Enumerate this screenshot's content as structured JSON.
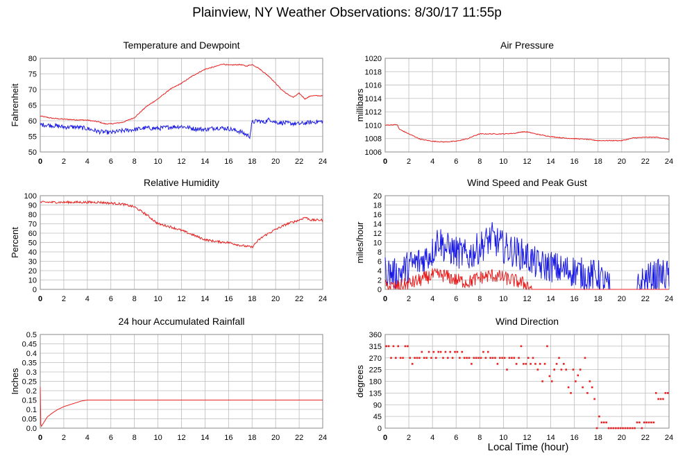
{
  "page": {
    "title": "Plainview, NY Weather Observations: 8/30/17 11:55p",
    "xlabel": "Local Time (hour)"
  },
  "colors": {
    "red": "#e82020",
    "blue": "#1a1ae6",
    "grid": "#bbbbbb",
    "frame": "#888888"
  },
  "chart_data": [
    {
      "id": "temp",
      "type": "line",
      "title": "Temperature and Dewpoint",
      "ylabel": "Fahrenheit",
      "xlim": [
        0,
        24
      ],
      "ylim": [
        50,
        80
      ],
      "xticks": [
        0,
        2,
        4,
        6,
        8,
        10,
        12,
        14,
        16,
        18,
        20,
        22,
        24
      ],
      "yticks": [
        50,
        55,
        60,
        65,
        70,
        75,
        80
      ],
      "grid": true,
      "series": [
        {
          "color": "red",
          "jitter": 0.15,
          "x": [
            0,
            1,
            2,
            3,
            4,
            5,
            5.5,
            6,
            7,
            8,
            9,
            10,
            11,
            12,
            13,
            14,
            15,
            15.5,
            16,
            17,
            17.5,
            18,
            18.5,
            19,
            19.5,
            20,
            20.5,
            21,
            21.5,
            22,
            22.5,
            23,
            24
          ],
          "y": [
            61.5,
            60.8,
            60.5,
            60.3,
            60.2,
            59.6,
            59,
            59,
            59.5,
            61,
            64.5,
            67,
            70,
            72,
            74.5,
            76.5,
            77.5,
            78.2,
            77.8,
            78,
            77.5,
            78,
            77,
            75.5,
            74,
            72,
            70,
            68.5,
            67.5,
            68.8,
            67,
            68,
            68
          ]
        },
        {
          "color": "blue",
          "jitter": 0.7,
          "x": [
            0,
            1,
            2,
            3,
            4,
            5,
            6,
            7,
            8,
            9,
            10,
            11,
            12,
            13,
            14,
            15,
            16,
            17,
            17.8,
            18,
            18.5,
            19,
            19.5,
            20,
            21,
            22,
            23,
            24
          ],
          "y": [
            58.8,
            58.5,
            58,
            58,
            57.5,
            56.5,
            56.2,
            56.8,
            57.2,
            57.7,
            57.5,
            58,
            58.2,
            57.5,
            57.2,
            57.8,
            57.5,
            56.5,
            55,
            59.5,
            60,
            59.5,
            60.5,
            59.5,
            59.2,
            59,
            59.5,
            59.8
          ]
        }
      ]
    },
    {
      "id": "pressure",
      "type": "line",
      "title": "Air Pressure",
      "ylabel": "millibars",
      "xlim": [
        0,
        24
      ],
      "ylim": [
        1006,
        1020
      ],
      "xticks": [
        0,
        2,
        4,
        6,
        8,
        10,
        12,
        14,
        16,
        18,
        20,
        22,
        24
      ],
      "yticks": [
        1006,
        1008,
        1010,
        1012,
        1014,
        1016,
        1018,
        1020
      ],
      "grid": true,
      "series": [
        {
          "color": "red",
          "jitter": 0.06,
          "x": [
            0,
            1,
            1.2,
            2,
            2.5,
            3,
            4,
            5,
            6,
            7,
            7.5,
            8,
            9,
            10,
            11,
            11.5,
            12,
            13,
            14,
            15,
            16,
            17,
            18,
            19,
            20,
            20.5,
            21,
            22,
            23,
            24
          ],
          "y": [
            1010,
            1010.1,
            1009.4,
            1008.7,
            1008.3,
            1007.9,
            1007.6,
            1007.5,
            1007.6,
            1008,
            1008.4,
            1008.7,
            1008.7,
            1008.7,
            1008.8,
            1009,
            1009,
            1008.6,
            1008.3,
            1008.1,
            1008,
            1007.9,
            1007.7,
            1007.7,
            1007.7,
            1007.9,
            1008.1,
            1008.2,
            1008.2,
            1007.9
          ]
        }
      ]
    },
    {
      "id": "humidity",
      "type": "line",
      "title": "Relative Humidity",
      "ylabel": "Percent",
      "xlim": [
        0,
        24
      ],
      "ylim": [
        0,
        100
      ],
      "xticks": [
        0,
        2,
        4,
        6,
        8,
        10,
        12,
        14,
        16,
        18,
        20,
        22,
        24
      ],
      "yticks": [
        0,
        10,
        20,
        30,
        40,
        50,
        60,
        70,
        80,
        90,
        100
      ],
      "grid": true,
      "series": [
        {
          "color": "red",
          "jitter": 1.2,
          "x": [
            0,
            1,
            2,
            3,
            4,
            5,
            6,
            7,
            8,
            9,
            10,
            11,
            12,
            13,
            14,
            15,
            16,
            17,
            18,
            18.5,
            19,
            20,
            21,
            22,
            22.5,
            23,
            24
          ],
          "y": [
            93,
            93,
            93,
            93,
            93,
            93,
            92,
            91,
            88,
            80,
            70,
            67,
            63,
            58,
            53,
            51,
            50,
            47,
            45,
            52,
            57,
            64,
            70,
            74,
            77,
            74,
            74
          ]
        }
      ]
    },
    {
      "id": "wind",
      "type": "line",
      "title": "Wind Speed and Peak Gust",
      "ylabel": "miles/hour",
      "xlim": [
        0,
        24
      ],
      "ylim": [
        0,
        20
      ],
      "xticks": [
        0,
        2,
        4,
        6,
        8,
        10,
        12,
        14,
        16,
        18,
        20,
        22,
        24
      ],
      "yticks": [
        0,
        2,
        4,
        6,
        8,
        10,
        12,
        14,
        16,
        18,
        20
      ],
      "grid": true,
      "series": [
        {
          "color": "blue",
          "jitter": 3.5,
          "zeroAfter": [
            19,
            21.3
          ],
          "x": [
            0,
            1,
            2,
            3,
            4,
            4.5,
            5,
            6,
            7,
            8,
            8.5,
            9,
            10,
            11,
            12,
            13,
            14,
            15,
            16,
            17,
            18,
            19,
            20,
            21,
            22,
            23,
            24
          ],
          "y": [
            4,
            3,
            5,
            6,
            8,
            11,
            9,
            8,
            7,
            9,
            10,
            11,
            9,
            8,
            7,
            5,
            5,
            4,
            4,
            3,
            3,
            0,
            0,
            0,
            2,
            3,
            3
          ]
        },
        {
          "color": "red",
          "jitter": 1.5,
          "zeroAfter": [
            12.5,
            100
          ],
          "x": [
            0,
            1,
            2,
            3,
            4,
            5,
            6,
            7,
            8,
            9,
            10,
            11,
            12,
            12.5,
            24
          ],
          "y": [
            0.6,
            0.5,
            1.2,
            2,
            3,
            3,
            2,
            1.5,
            2.5,
            3,
            2.5,
            1.8,
            1,
            0,
            0
          ]
        }
      ]
    },
    {
      "id": "rain",
      "type": "line",
      "title": "24 hour Accumulated Rainfall",
      "ylabel": "Inches",
      "xlim": [
        0,
        24
      ],
      "ylim": [
        0,
        0.5
      ],
      "xticks": [
        0,
        2,
        4,
        6,
        8,
        10,
        12,
        14,
        16,
        18,
        20,
        22,
        24
      ],
      "yticks": [
        0,
        0.05,
        0.1,
        0.15,
        0.2,
        0.25,
        0.3,
        0.35,
        0.4,
        0.45,
        0.5
      ],
      "grid": true,
      "series": [
        {
          "color": "red",
          "jitter": 0,
          "x": [
            0,
            0.05,
            0.1,
            0.3,
            0.6,
            1,
            1.5,
            2,
            2.5,
            3,
            3.5,
            4,
            24
          ],
          "y": [
            0.22,
            0.02,
            0.01,
            0.03,
            0.06,
            0.08,
            0.1,
            0.115,
            0.125,
            0.135,
            0.145,
            0.15,
            0.15
          ]
        }
      ]
    },
    {
      "id": "direction",
      "type": "scatter",
      "title": "Wind Direction",
      "ylabel": "degrees",
      "xlim": [
        0,
        24
      ],
      "ylim": [
        0,
        360
      ],
      "xticks": [
        0,
        2,
        4,
        6,
        8,
        10,
        12,
        14,
        16,
        18,
        20,
        22,
        24
      ],
      "yticks": [
        0,
        45,
        90,
        135,
        180,
        225,
        270,
        315,
        360
      ],
      "grid": true,
      "series": [
        {
          "color": "red",
          "points": [
            [
              0.1,
              315
            ],
            [
              0.3,
              315
            ],
            [
              0.5,
              270
            ],
            [
              0.7,
              315
            ],
            [
              0.9,
              270
            ],
            [
              1.1,
              315
            ],
            [
              1.3,
              270
            ],
            [
              1.5,
              270
            ],
            [
              1.7,
              315
            ],
            [
              1.9,
              315
            ],
            [
              2.1,
              270
            ],
            [
              2.3,
              247
            ],
            [
              2.5,
              270
            ],
            [
              2.7,
              270
            ],
            [
              2.9,
              270
            ],
            [
              3.1,
              293
            ],
            [
              3.3,
              270
            ],
            [
              3.5,
              270
            ],
            [
              3.7,
              293
            ],
            [
              3.9,
              270
            ],
            [
              4.1,
              293
            ],
            [
              4.3,
              270
            ],
            [
              4.5,
              293
            ],
            [
              4.7,
              293
            ],
            [
              4.9,
              270
            ],
            [
              5.1,
              293
            ],
            [
              5.3,
              270
            ],
            [
              5.5,
              293
            ],
            [
              5.7,
              270
            ],
            [
              5.9,
              293
            ],
            [
              6.1,
              293
            ],
            [
              6.3,
              270
            ],
            [
              6.5,
              293
            ],
            [
              6.7,
              270
            ],
            [
              6.9,
              270
            ],
            [
              7.1,
              270
            ],
            [
              7.3,
              247
            ],
            [
              7.5,
              270
            ],
            [
              7.7,
              270
            ],
            [
              7.9,
              270
            ],
            [
              8.1,
              270
            ],
            [
              8.3,
              293
            ],
            [
              8.5,
              270
            ],
            [
              8.7,
              293
            ],
            [
              8.9,
              270
            ],
            [
              9.1,
              270
            ],
            [
              9.3,
              270
            ],
            [
              9.5,
              247
            ],
            [
              9.7,
              270
            ],
            [
              9.9,
              270
            ],
            [
              10.1,
              270
            ],
            [
              10.3,
              225
            ],
            [
              10.5,
              270
            ],
            [
              10.7,
              270
            ],
            [
              10.9,
              270
            ],
            [
              11.1,
              247
            ],
            [
              11.3,
              270
            ],
            [
              11.5,
              315
            ],
            [
              11.7,
              247
            ],
            [
              11.9,
              247
            ],
            [
              12.1,
              270
            ],
            [
              12.3,
              247
            ],
            [
              12.5,
              270
            ],
            [
              12.7,
              247
            ],
            [
              12.9,
              225
            ],
            [
              13.1,
              247
            ],
            [
              13.3,
              180
            ],
            [
              13.5,
              247
            ],
            [
              13.7,
              315
            ],
            [
              13.9,
              200
            ],
            [
              14.1,
              180
            ],
            [
              14.3,
              225
            ],
            [
              14.5,
              247
            ],
            [
              14.7,
              270
            ],
            [
              14.9,
              225
            ],
            [
              15.1,
              247
            ],
            [
              15.3,
              225
            ],
            [
              15.5,
              157
            ],
            [
              15.7,
              135
            ],
            [
              15.9,
              225
            ],
            [
              16.1,
              180
            ],
            [
              16.3,
              203
            ],
            [
              16.5,
              225
            ],
            [
              16.7,
              157
            ],
            [
              16.9,
              270
            ],
            [
              17.1,
              135
            ],
            [
              17.3,
              180
            ],
            [
              17.5,
              157
            ],
            [
              17.7,
              112
            ],
            [
              17.9,
              0
            ],
            [
              18.1,
              45
            ],
            [
              18.3,
              22
            ],
            [
              18.5,
              22
            ],
            [
              18.7,
              22
            ],
            [
              18.9,
              0
            ],
            [
              19.1,
              0
            ],
            [
              19.3,
              0
            ],
            [
              19.5,
              0
            ],
            [
              19.7,
              0
            ],
            [
              19.9,
              0
            ],
            [
              20.1,
              0
            ],
            [
              20.3,
              0
            ],
            [
              20.5,
              0
            ],
            [
              20.7,
              0
            ],
            [
              20.9,
              0
            ],
            [
              21.1,
              0
            ],
            [
              21.3,
              22
            ],
            [
              21.5,
              22
            ],
            [
              21.7,
              0
            ],
            [
              21.9,
              22
            ],
            [
              22.1,
              22
            ],
            [
              22.3,
              22
            ],
            [
              22.5,
              22
            ],
            [
              22.7,
              22
            ],
            [
              22.9,
              135
            ],
            [
              23.1,
              112
            ],
            [
              23.3,
              112
            ],
            [
              23.5,
              112
            ],
            [
              23.7,
              135
            ],
            [
              23.9,
              135
            ]
          ]
        }
      ]
    }
  ]
}
